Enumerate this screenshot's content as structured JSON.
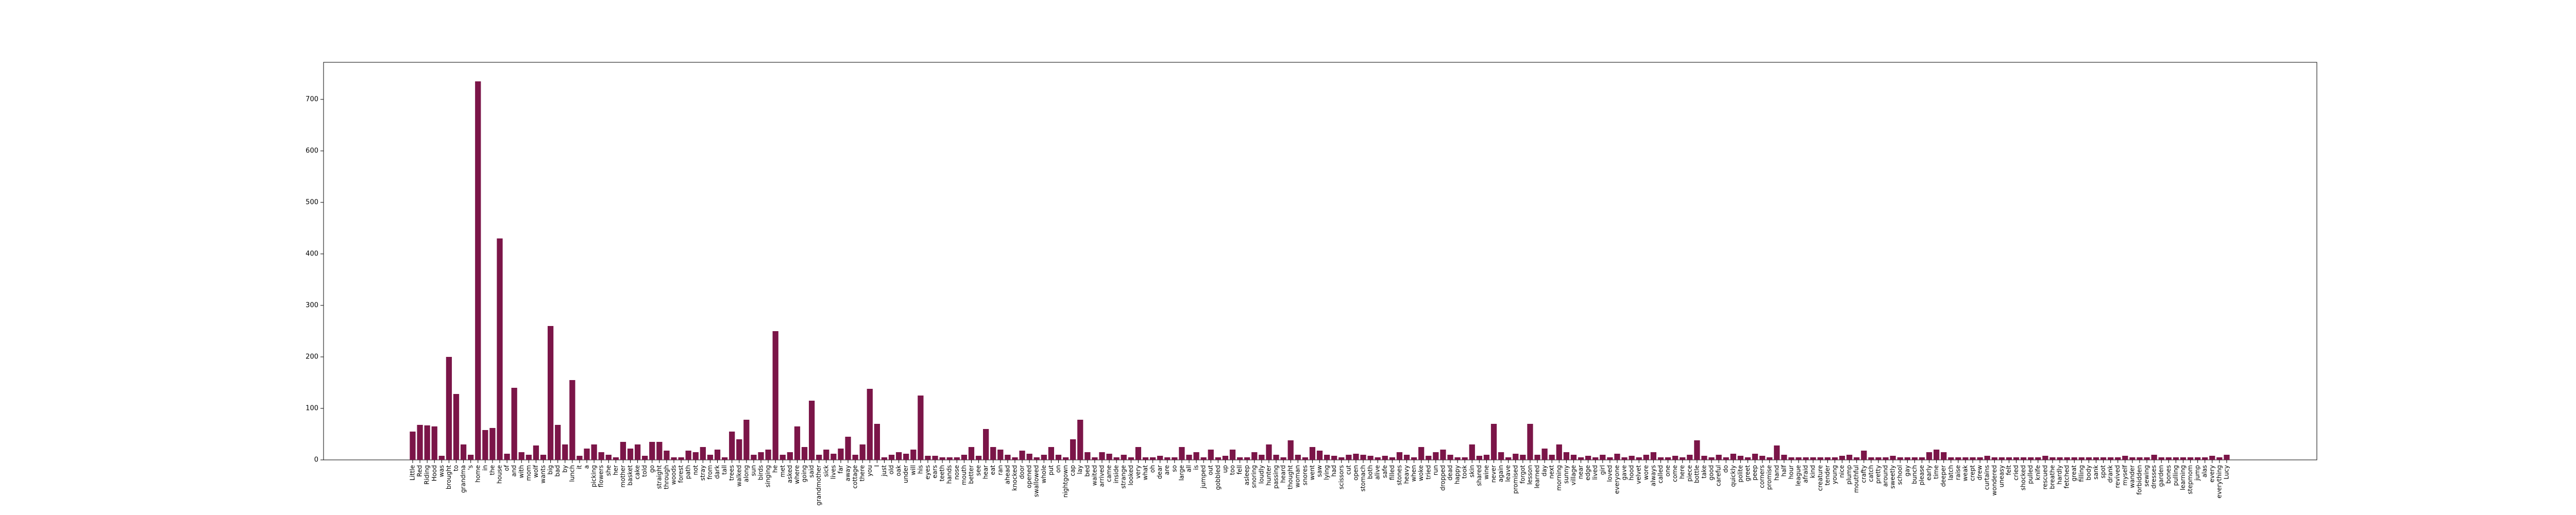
{
  "chart_data": {
    "type": "bar",
    "color": "#7b1548",
    "categories": [
      "Little",
      "Red",
      "Riding",
      "Hood",
      "was",
      "brought",
      "to",
      "grandma",
      "'s",
      "home",
      "in",
      "the",
      "house",
      "of",
      "and",
      "with",
      "mom",
      "wolf",
      "wants",
      "big",
      "bad",
      "by",
      "lunch",
      "it",
      "a",
      "picking",
      "flowers",
      "she",
      "her",
      "mother",
      "basket",
      "cake",
      "told",
      "go",
      "straight",
      "through",
      "woods",
      "forest",
      "path",
      "not",
      "stray",
      "from",
      "dark",
      "tall",
      "trees",
      "walked",
      "along",
      "sun",
      "birds",
      "singing",
      "he",
      "met",
      "asked",
      "where",
      "going",
      "said",
      "grandmother",
      "sick",
      "lives",
      "far",
      "away",
      "cottage",
      "there",
      "you",
      "I",
      "just",
      "old",
      "oak",
      "under",
      "will",
      "his",
      "eyes",
      "ears",
      "teeth",
      "hands",
      "nose",
      "mouth",
      "better",
      "see",
      "hear",
      "eat",
      "ran",
      "ahead",
      "knocked",
      "door",
      "opened",
      "swallowed",
      "whole",
      "put",
      "on",
      "nightgown",
      "cap",
      "lay",
      "bed",
      "waited",
      "arrived",
      "came",
      "inside",
      "strange",
      "looked",
      "very",
      "what",
      "oh",
      "dear",
      "are",
      "so",
      "large",
      "all",
      "is",
      "jumped",
      "out",
      "gobbled",
      "up",
      "too",
      "fell",
      "asleep",
      "snoring",
      "loudly",
      "hunter",
      "passing",
      "heard",
      "thought",
      "woman",
      "snores",
      "went",
      "saw",
      "lying",
      "had",
      "scissors",
      "cut",
      "open",
      "stomach",
      "both",
      "alive",
      "safe",
      "filled",
      "stones",
      "heavy",
      "when",
      "woke",
      "tried",
      "run",
      "dropped",
      "dead",
      "happy",
      "took",
      "skin",
      "shared",
      "wine",
      "never",
      "again",
      "leave",
      "promised",
      "forgot",
      "lesson",
      "learned",
      "day",
      "next",
      "morning",
      "sunny",
      "village",
      "near",
      "edge",
      "lived",
      "girl",
      "loved",
      "everyone",
      "gave",
      "hood",
      "velvet",
      "wore",
      "always",
      "called",
      "one",
      "come",
      "here",
      "piece",
      "bottle",
      "take",
      "good",
      "careful",
      "do",
      "quickly",
      "polite",
      "greet",
      "peep",
      "corners",
      "promise",
      "hand",
      "half",
      "hour",
      "league",
      "afraid",
      "kind",
      "creature",
      "tender",
      "young",
      "nice",
      "plump",
      "mouthful",
      "crafty",
      "catch",
      "pretty",
      "around",
      "sweetly",
      "school",
      "gay",
      "bunch",
      "please",
      "early",
      "time",
      "deeper",
      "latch",
      "raise",
      "weak",
      "crept",
      "drew",
      "curtains",
      "wondered",
      "uneasy",
      "felt",
      "cried",
      "shocked",
      "pulled",
      "knife",
      "rescued",
      "breathe",
      "hardly",
      "fetched",
      "great",
      "filling",
      "body",
      "sank",
      "spot",
      "drank",
      "revived",
      "myself",
      "wander",
      "forbidden",
      "sewing",
      "dresses",
      "garden",
      "bones",
      "pulling",
      "learning",
      "stepmom",
      "jump",
      "alas",
      "every",
      "everything",
      "Lucy"
    ],
    "values": [
      55,
      68,
      67,
      65,
      8,
      200,
      128,
      30,
      10,
      735,
      58,
      62,
      430,
      12,
      140,
      15,
      10,
      28,
      10,
      260,
      68,
      30,
      155,
      8,
      22,
      30,
      15,
      10,
      5,
      35,
      22,
      30,
      8,
      35,
      35,
      18,
      5,
      5,
      18,
      15,
      25,
      10,
      20,
      5,
      55,
      40,
      78,
      10,
      15,
      20,
      250,
      10,
      15,
      65,
      25,
      115,
      10,
      20,
      12,
      22,
      45,
      10,
      30,
      138,
      70,
      5,
      10,
      15,
      12,
      20,
      125,
      8,
      8,
      5,
      5,
      5,
      10,
      25,
      8,
      60,
      25,
      20,
      10,
      5,
      18,
      12,
      5,
      10,
      25,
      10,
      5,
      40,
      78,
      15,
      5,
      15,
      12,
      5,
      10,
      5,
      25,
      5,
      5,
      8,
      5,
      5,
      25,
      10,
      15,
      5,
      20,
      5,
      8,
      20,
      5,
      5,
      15,
      10,
      30,
      10,
      5,
      38,
      10,
      5,
      25,
      18,
      10,
      8,
      5,
      10,
      12,
      10,
      8,
      5,
      8,
      5,
      15,
      10,
      5,
      25,
      8,
      15,
      20,
      10,
      5,
      5,
      30,
      8,
      10,
      70,
      15,
      5,
      12,
      10,
      70,
      10,
      22,
      10,
      30,
      15,
      10,
      5,
      8,
      5,
      10,
      5,
      12,
      5,
      8,
      5,
      10,
      15,
      5,
      5,
      8,
      5,
      10,
      38,
      8,
      5,
      10,
      5,
      12,
      8,
      5,
      12,
      8,
      5,
      28,
      10,
      5,
      5,
      5,
      5,
      5,
      5,
      5,
      8,
      10,
      5,
      18,
      5,
      5,
      5,
      8,
      5,
      5,
      5,
      5,
      15,
      20,
      15,
      5,
      5,
      5,
      5,
      5,
      8,
      5,
      5,
      5,
      5,
      5,
      5,
      5,
      8,
      5,
      5,
      5,
      5,
      5,
      5,
      5,
      5,
      5,
      5,
      8,
      5,
      5,
      5,
      10,
      5,
      5,
      5,
      5,
      5,
      5,
      5,
      8,
      5,
      10
    ],
    "ylim": [
      0,
      772
    ],
    "yticks": [
      0,
      100,
      200,
      300,
      400,
      500,
      600,
      700
    ],
    "grid": false
  }
}
